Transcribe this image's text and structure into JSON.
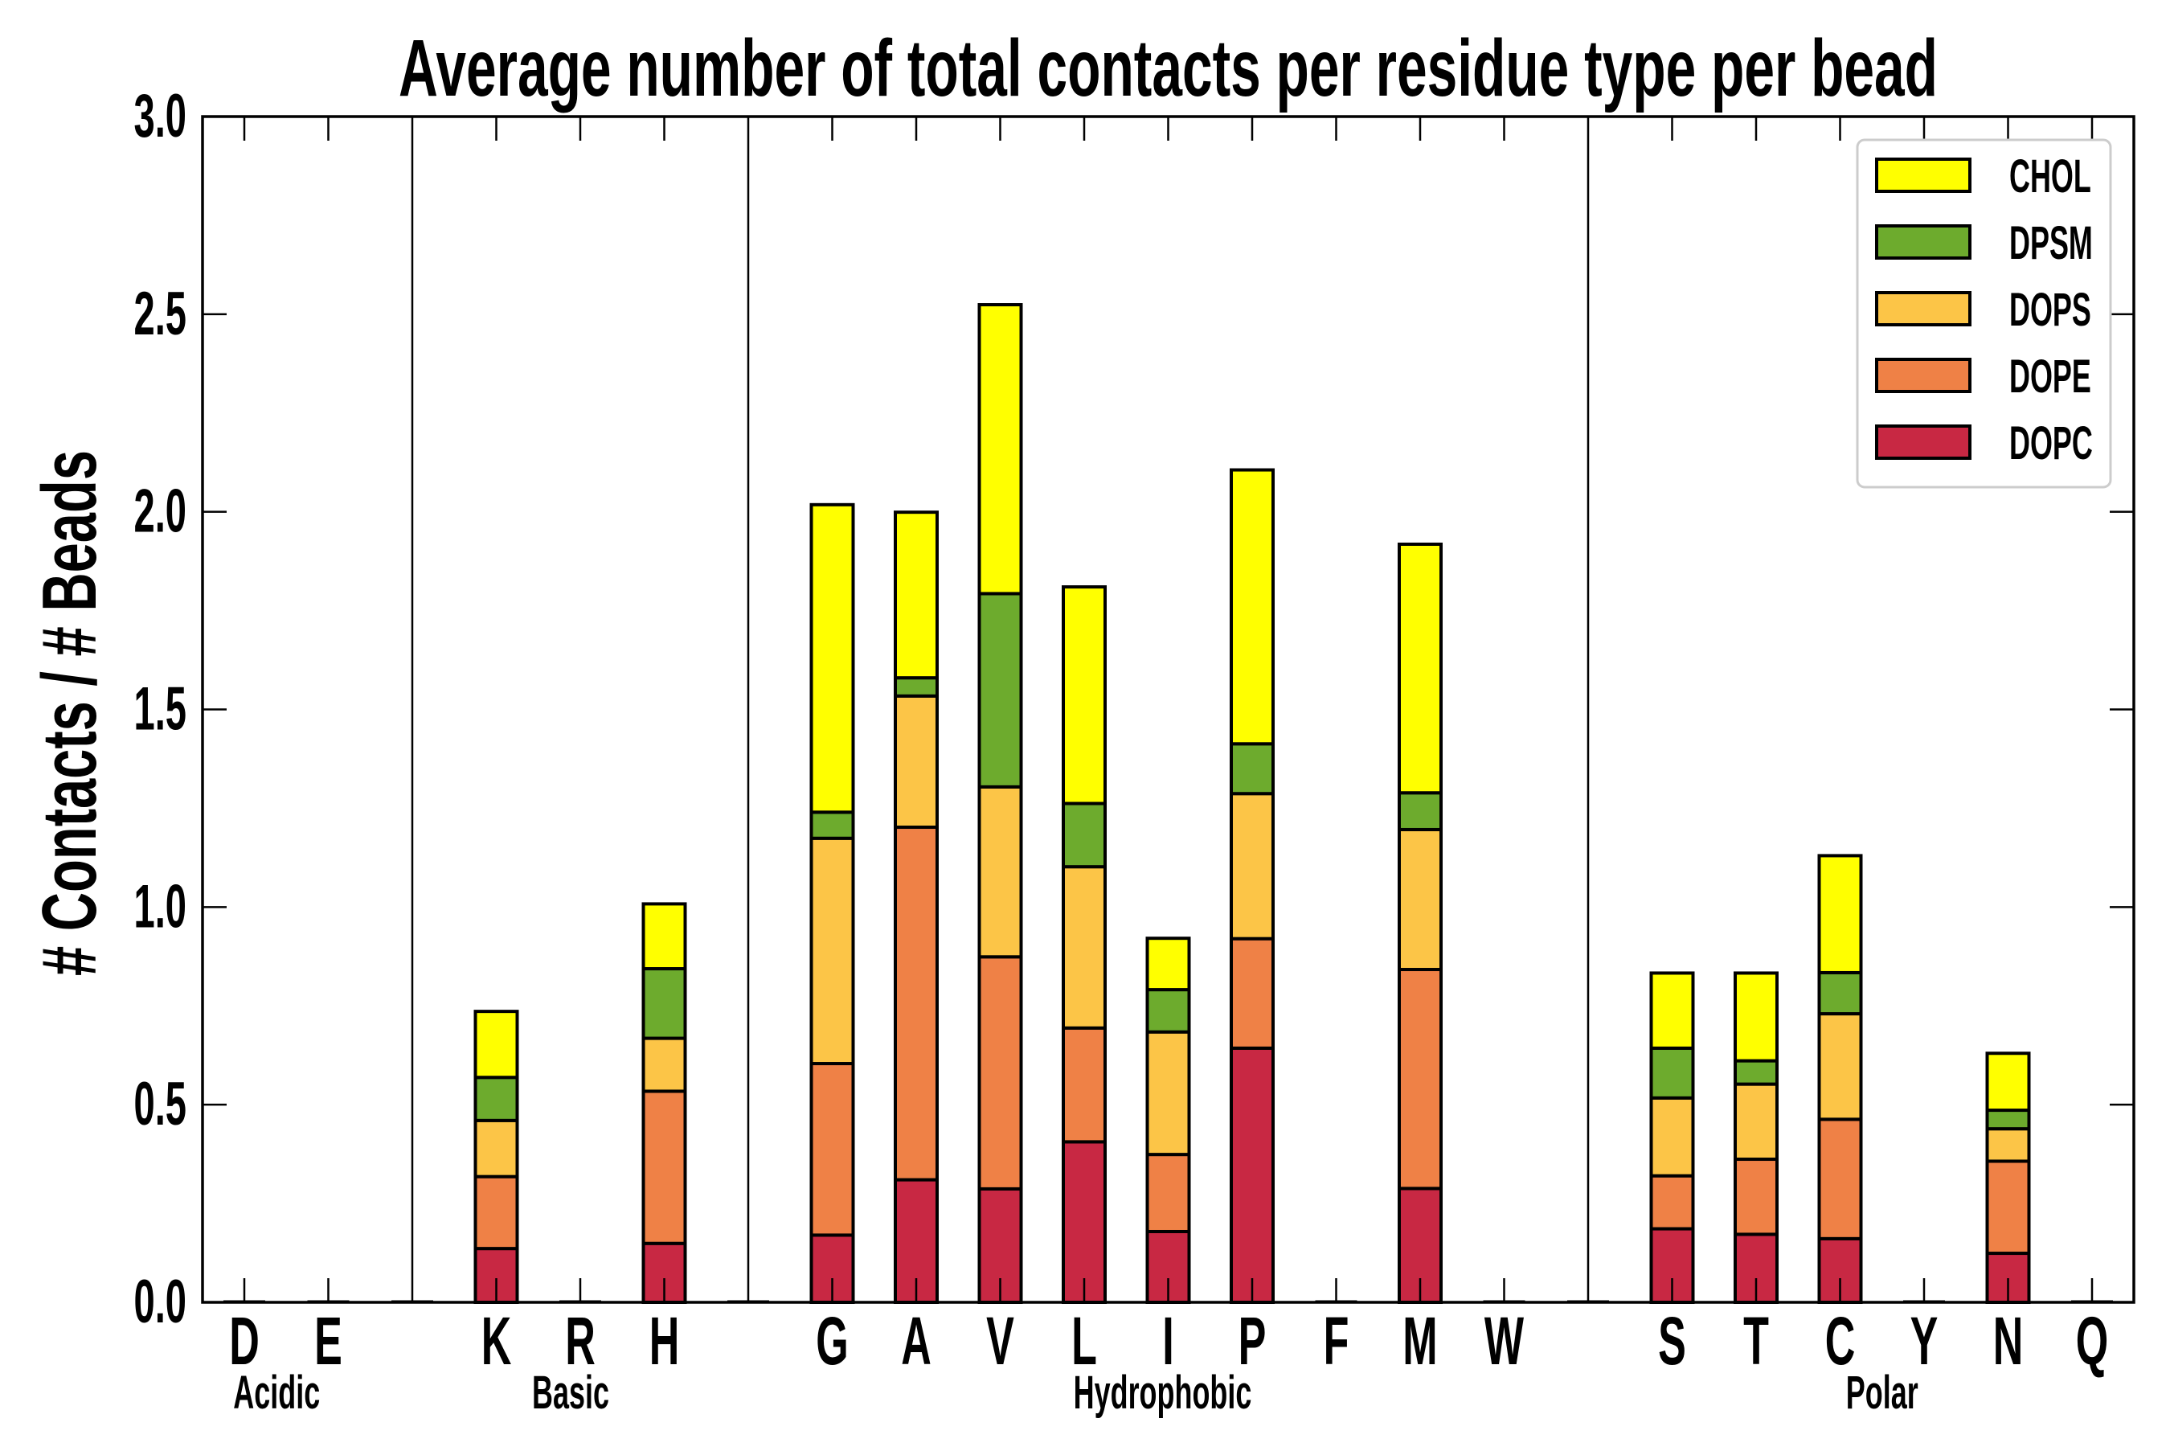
{
  "chart_data": {
    "type": "bar",
    "stacked": true,
    "title": "Average number of total contacts per residue type per bead",
    "xlabel": "",
    "ylabel": "# Contacts / # Beads",
    "ylim": [
      0,
      3.0
    ],
    "yticks": [
      "0.0",
      "0.5",
      "1.0",
      "1.5",
      "2.0",
      "2.5",
      "3.0"
    ],
    "ytick_values": [
      0,
      0.5,
      1.0,
      1.5,
      2.0,
      2.5,
      3.0
    ],
    "grid": false,
    "legend_position": "top-right",
    "groups": [
      {
        "name": "Acidic",
        "residues": [
          "D",
          "E"
        ]
      },
      {
        "name": "Basic",
        "residues": [
          "K",
          "R",
          "H"
        ]
      },
      {
        "name": "Hydrophobic",
        "residues": [
          "G",
          "A",
          "V",
          "L",
          "I",
          "P",
          "F",
          "M",
          "W"
        ]
      },
      {
        "name": "Polar",
        "residues": [
          "S",
          "T",
          "C",
          "Y",
          "N",
          "Q"
        ]
      }
    ],
    "categories": [
      "D",
      "E",
      "K",
      "R",
      "H",
      "G",
      "A",
      "V",
      "L",
      "I",
      "P",
      "F",
      "M",
      "W",
      "S",
      "T",
      "C",
      "Y",
      "N",
      "Q"
    ],
    "series": [
      {
        "name": "DOPC",
        "color": "#C82843",
        "values": [
          0,
          0,
          0.136,
          0,
          0.149,
          0.17,
          0.31,
          0.287,
          0.406,
          0.179,
          0.643,
          0,
          0.288,
          0,
          0.186,
          0.172,
          0.161,
          0,
          0.124,
          0
        ]
      },
      {
        "name": "DOPE",
        "color": "#EF8146",
        "values": [
          0,
          0,
          0.182,
          0,
          0.385,
          0.434,
          0.892,
          0.587,
          0.288,
          0.195,
          0.277,
          0,
          0.554,
          0,
          0.134,
          0.19,
          0.302,
          0,
          0.233,
          0
        ]
      },
      {
        "name": "DOPS",
        "color": "#FCC547",
        "values": [
          0,
          0,
          0.142,
          0,
          0.134,
          0.57,
          0.332,
          0.43,
          0.408,
          0.31,
          0.367,
          0,
          0.354,
          0,
          0.197,
          0.19,
          0.267,
          0,
          0.082,
          0
        ]
      },
      {
        "name": "DPSM",
        "color": "#6DAB2D",
        "values": [
          0,
          0,
          0.109,
          0,
          0.176,
          0.066,
          0.046,
          0.489,
          0.16,
          0.107,
          0.126,
          0,
          0.093,
          0,
          0.126,
          0.059,
          0.104,
          0,
          0.047,
          0
        ]
      },
      {
        "name": "CHOL",
        "color": "#FFFF00",
        "values": [
          0,
          0,
          0.167,
          0,
          0.164,
          0.778,
          0.419,
          0.731,
          0.548,
          0.13,
          0.693,
          0,
          0.629,
          0,
          0.19,
          0.222,
          0.296,
          0,
          0.144,
          0
        ]
      }
    ],
    "legend_order": [
      "CHOL",
      "DPSM",
      "DOPS",
      "DOPE",
      "DOPC"
    ]
  }
}
